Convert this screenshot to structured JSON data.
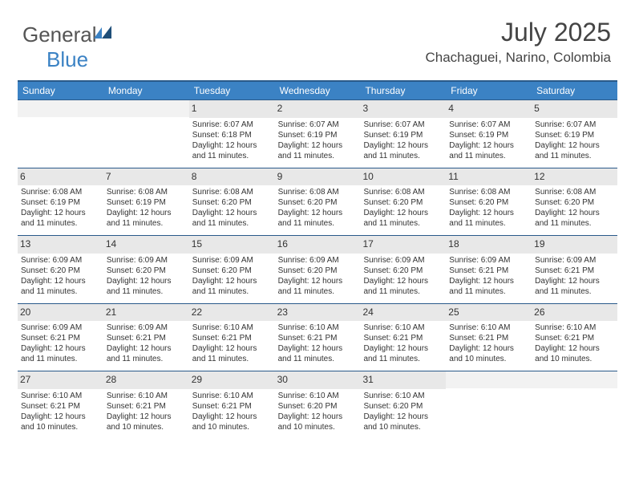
{
  "logo": {
    "text_main": "General",
    "text_accent": "Blue",
    "accent_color": "#3b82c4"
  },
  "title": "July 2025",
  "location": "Chachaguei, Narino, Colombia",
  "colors": {
    "header_bg": "#3b82c4",
    "header_border": "#2a5a8a",
    "daynum_bg": "#e8e8e8",
    "page_bg": "#ffffff",
    "text": "#333333"
  },
  "weekdays": [
    "Sunday",
    "Monday",
    "Tuesday",
    "Wednesday",
    "Thursday",
    "Friday",
    "Saturday"
  ],
  "weeks": [
    [
      {
        "n": "",
        "sr": "",
        "ss": "",
        "dl": ""
      },
      {
        "n": "",
        "sr": "",
        "ss": "",
        "dl": ""
      },
      {
        "n": "1",
        "sr": "Sunrise: 6:07 AM",
        "ss": "Sunset: 6:18 PM",
        "dl": "Daylight: 12 hours and 11 minutes."
      },
      {
        "n": "2",
        "sr": "Sunrise: 6:07 AM",
        "ss": "Sunset: 6:19 PM",
        "dl": "Daylight: 12 hours and 11 minutes."
      },
      {
        "n": "3",
        "sr": "Sunrise: 6:07 AM",
        "ss": "Sunset: 6:19 PM",
        "dl": "Daylight: 12 hours and 11 minutes."
      },
      {
        "n": "4",
        "sr": "Sunrise: 6:07 AM",
        "ss": "Sunset: 6:19 PM",
        "dl": "Daylight: 12 hours and 11 minutes."
      },
      {
        "n": "5",
        "sr": "Sunrise: 6:07 AM",
        "ss": "Sunset: 6:19 PM",
        "dl": "Daylight: 12 hours and 11 minutes."
      }
    ],
    [
      {
        "n": "6",
        "sr": "Sunrise: 6:08 AM",
        "ss": "Sunset: 6:19 PM",
        "dl": "Daylight: 12 hours and 11 minutes."
      },
      {
        "n": "7",
        "sr": "Sunrise: 6:08 AM",
        "ss": "Sunset: 6:19 PM",
        "dl": "Daylight: 12 hours and 11 minutes."
      },
      {
        "n": "8",
        "sr": "Sunrise: 6:08 AM",
        "ss": "Sunset: 6:20 PM",
        "dl": "Daylight: 12 hours and 11 minutes."
      },
      {
        "n": "9",
        "sr": "Sunrise: 6:08 AM",
        "ss": "Sunset: 6:20 PM",
        "dl": "Daylight: 12 hours and 11 minutes."
      },
      {
        "n": "10",
        "sr": "Sunrise: 6:08 AM",
        "ss": "Sunset: 6:20 PM",
        "dl": "Daylight: 12 hours and 11 minutes."
      },
      {
        "n": "11",
        "sr": "Sunrise: 6:08 AM",
        "ss": "Sunset: 6:20 PM",
        "dl": "Daylight: 12 hours and 11 minutes."
      },
      {
        "n": "12",
        "sr": "Sunrise: 6:08 AM",
        "ss": "Sunset: 6:20 PM",
        "dl": "Daylight: 12 hours and 11 minutes."
      }
    ],
    [
      {
        "n": "13",
        "sr": "Sunrise: 6:09 AM",
        "ss": "Sunset: 6:20 PM",
        "dl": "Daylight: 12 hours and 11 minutes."
      },
      {
        "n": "14",
        "sr": "Sunrise: 6:09 AM",
        "ss": "Sunset: 6:20 PM",
        "dl": "Daylight: 12 hours and 11 minutes."
      },
      {
        "n": "15",
        "sr": "Sunrise: 6:09 AM",
        "ss": "Sunset: 6:20 PM",
        "dl": "Daylight: 12 hours and 11 minutes."
      },
      {
        "n": "16",
        "sr": "Sunrise: 6:09 AM",
        "ss": "Sunset: 6:20 PM",
        "dl": "Daylight: 12 hours and 11 minutes."
      },
      {
        "n": "17",
        "sr": "Sunrise: 6:09 AM",
        "ss": "Sunset: 6:20 PM",
        "dl": "Daylight: 12 hours and 11 minutes."
      },
      {
        "n": "18",
        "sr": "Sunrise: 6:09 AM",
        "ss": "Sunset: 6:21 PM",
        "dl": "Daylight: 12 hours and 11 minutes."
      },
      {
        "n": "19",
        "sr": "Sunrise: 6:09 AM",
        "ss": "Sunset: 6:21 PM",
        "dl": "Daylight: 12 hours and 11 minutes."
      }
    ],
    [
      {
        "n": "20",
        "sr": "Sunrise: 6:09 AM",
        "ss": "Sunset: 6:21 PM",
        "dl": "Daylight: 12 hours and 11 minutes."
      },
      {
        "n": "21",
        "sr": "Sunrise: 6:09 AM",
        "ss": "Sunset: 6:21 PM",
        "dl": "Daylight: 12 hours and 11 minutes."
      },
      {
        "n": "22",
        "sr": "Sunrise: 6:10 AM",
        "ss": "Sunset: 6:21 PM",
        "dl": "Daylight: 12 hours and 11 minutes."
      },
      {
        "n": "23",
        "sr": "Sunrise: 6:10 AM",
        "ss": "Sunset: 6:21 PM",
        "dl": "Daylight: 12 hours and 11 minutes."
      },
      {
        "n": "24",
        "sr": "Sunrise: 6:10 AM",
        "ss": "Sunset: 6:21 PM",
        "dl": "Daylight: 12 hours and 11 minutes."
      },
      {
        "n": "25",
        "sr": "Sunrise: 6:10 AM",
        "ss": "Sunset: 6:21 PM",
        "dl": "Daylight: 12 hours and 10 minutes."
      },
      {
        "n": "26",
        "sr": "Sunrise: 6:10 AM",
        "ss": "Sunset: 6:21 PM",
        "dl": "Daylight: 12 hours and 10 minutes."
      }
    ],
    [
      {
        "n": "27",
        "sr": "Sunrise: 6:10 AM",
        "ss": "Sunset: 6:21 PM",
        "dl": "Daylight: 12 hours and 10 minutes."
      },
      {
        "n": "28",
        "sr": "Sunrise: 6:10 AM",
        "ss": "Sunset: 6:21 PM",
        "dl": "Daylight: 12 hours and 10 minutes."
      },
      {
        "n": "29",
        "sr": "Sunrise: 6:10 AM",
        "ss": "Sunset: 6:21 PM",
        "dl": "Daylight: 12 hours and 10 minutes."
      },
      {
        "n": "30",
        "sr": "Sunrise: 6:10 AM",
        "ss": "Sunset: 6:20 PM",
        "dl": "Daylight: 12 hours and 10 minutes."
      },
      {
        "n": "31",
        "sr": "Sunrise: 6:10 AM",
        "ss": "Sunset: 6:20 PM",
        "dl": "Daylight: 12 hours and 10 minutes."
      },
      {
        "n": "",
        "sr": "",
        "ss": "",
        "dl": ""
      },
      {
        "n": "",
        "sr": "",
        "ss": "",
        "dl": ""
      }
    ]
  ]
}
